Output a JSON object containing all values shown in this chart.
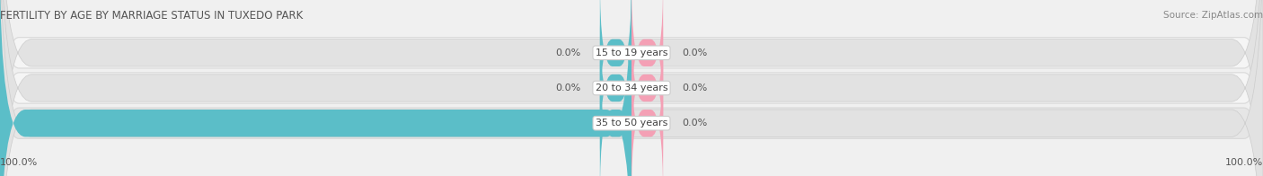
{
  "title": "FERTILITY BY AGE BY MARRIAGE STATUS IN TUXEDO PARK",
  "source": "Source: ZipAtlas.com",
  "categories": [
    "15 to 19 years",
    "20 to 34 years",
    "35 to 50 years"
  ],
  "married_values": [
    0.0,
    0.0,
    100.0
  ],
  "unmarried_values": [
    0.0,
    0.0,
    0.0
  ],
  "married_color": "#5bbec8",
  "unmarried_color": "#f4a0b5",
  "bar_bg_color": "#e6e6e6",
  "bar_border_color": "#d0d0d0",
  "title_fontsize": 8.5,
  "source_fontsize": 7.5,
  "label_fontsize": 8,
  "value_fontsize": 8,
  "tick_fontsize": 8,
  "legend_fontsize": 8,
  "xlim": [
    -100,
    100
  ],
  "bg_color": "#f0f0f0",
  "row_bg_colors": [
    "#f7f7f7",
    "#f7f7f7",
    "#e8e8e8"
  ]
}
